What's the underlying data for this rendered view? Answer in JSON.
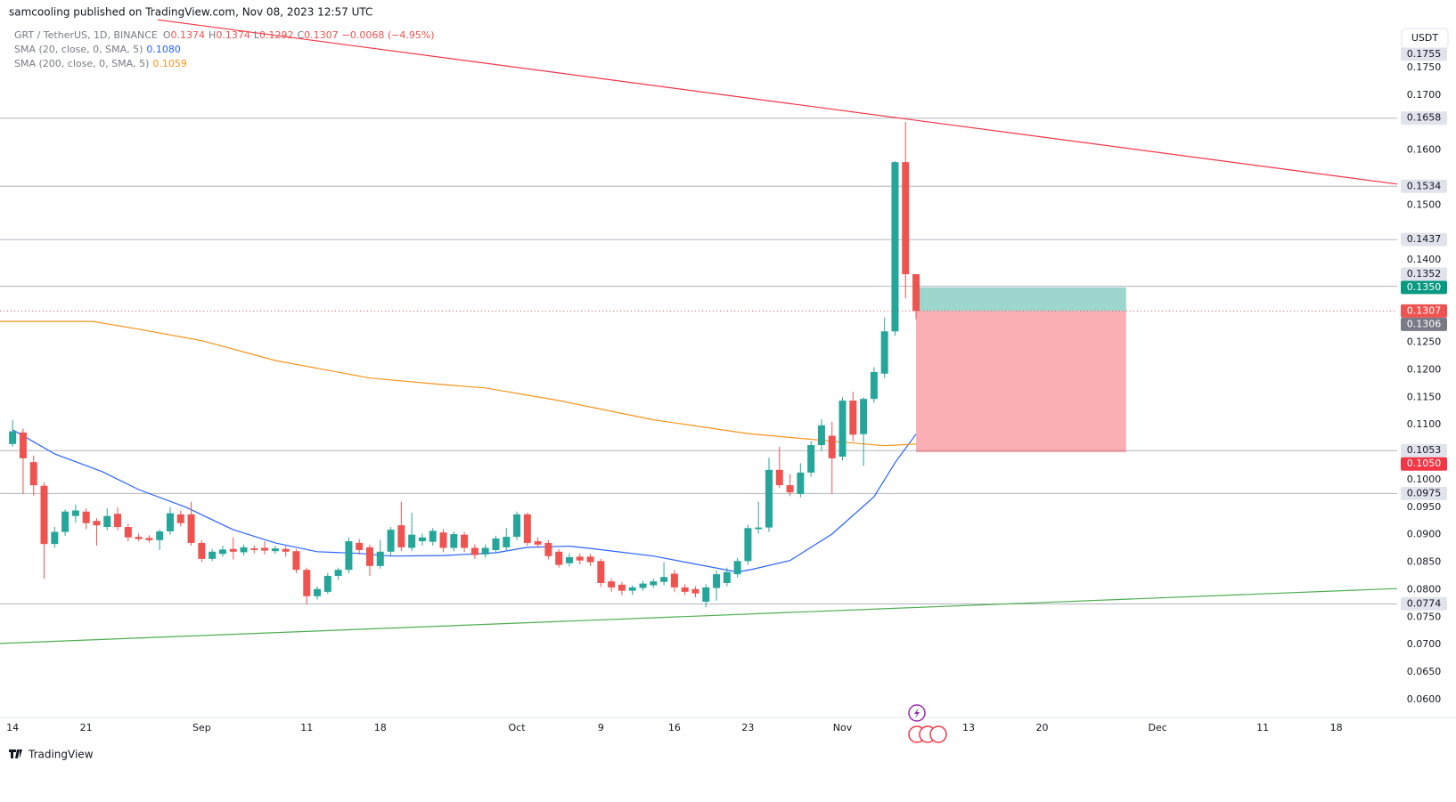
{
  "header": {
    "text": "samcooling published on TradingView.com, Nov 08, 2023 12:57 UTC"
  },
  "footer": {
    "brand": "TradingView"
  },
  "chart_data": {
    "type": "candlestick",
    "symbol": "GRT / TetherUS, 1D, BINANCE",
    "ohlc_legend": [
      {
        "k": "O",
        "v": "0.1374"
      },
      {
        "k": "H",
        "v": "0.1374"
      },
      {
        "k": "L",
        "v": "0.1292"
      },
      {
        "k": "C",
        "v": "0.1307"
      }
    ],
    "change": "−0.0068 (−4.95%)",
    "currency": "USDT",
    "up_color": "#26a69a",
    "down_color": "#ef5350",
    "xlim": [
      -1.2,
      131.8
    ],
    "xticks": [
      {
        "value": 0,
        "label": "14"
      },
      {
        "value": 7,
        "label": "21"
      },
      {
        "value": 18,
        "label": "Sep"
      },
      {
        "value": 28,
        "label": "11"
      },
      {
        "value": 35,
        "label": "18"
      },
      {
        "value": 48,
        "label": "Oct"
      },
      {
        "value": 56,
        "label": "9"
      },
      {
        "value": 63,
        "label": "16"
      },
      {
        "value": 70,
        "label": "23"
      },
      {
        "value": 79,
        "label": "Nov"
      },
      {
        "value": 91,
        "label": "13"
      },
      {
        "value": 98,
        "label": "20"
      },
      {
        "value": 109,
        "label": "Dec"
      },
      {
        "value": 119,
        "label": "11"
      },
      {
        "value": 126,
        "label": "18"
      }
    ],
    "ylim": [
      0.0569,
      0.1873
    ],
    "yticks": [
      {
        "value": 0.175,
        "label": "0.1750"
      },
      {
        "value": 0.17,
        "label": "0.1700"
      },
      {
        "value": 0.16,
        "label": "0.1600"
      },
      {
        "value": 0.15,
        "label": "0.1500"
      },
      {
        "value": 0.14,
        "label": "0.1400"
      },
      {
        "value": 0.125,
        "label": "0.1250"
      },
      {
        "value": 0.12,
        "label": "0.1200"
      },
      {
        "value": 0.115,
        "label": "0.1150"
      },
      {
        "value": 0.11,
        "label": "0.1100"
      },
      {
        "value": 0.1,
        "label": "0.1000"
      },
      {
        "value": 0.095,
        "label": "0.0950"
      },
      {
        "value": 0.09,
        "label": "0.0900"
      },
      {
        "value": 0.085,
        "label": "0.0850"
      },
      {
        "value": 0.08,
        "label": "0.0800"
      },
      {
        "value": 0.075,
        "label": "0.0750"
      },
      {
        "value": 0.07,
        "label": "0.0700"
      },
      {
        "value": 0.065,
        "label": "0.0650"
      },
      {
        "value": 0.06,
        "label": "0.0600"
      }
    ],
    "candles": [
      {
        "o": 0.1065,
        "h": 0.1109,
        "l": 0.106,
        "c": 0.1088
      },
      {
        "o": 0.1086,
        "h": 0.1093,
        "l": 0.0974,
        "c": 0.1039
      },
      {
        "o": 0.1032,
        "h": 0.1044,
        "l": 0.0971,
        "c": 0.099
      },
      {
        "o": 0.0989,
        "h": 0.0995,
        "l": 0.082,
        "c": 0.0883
      },
      {
        "o": 0.0883,
        "h": 0.0914,
        "l": 0.0876,
        "c": 0.0905
      },
      {
        "o": 0.0905,
        "h": 0.0946,
        "l": 0.0898,
        "c": 0.0942
      },
      {
        "o": 0.0934,
        "h": 0.0955,
        "l": 0.0922,
        "c": 0.0944
      },
      {
        "o": 0.0942,
        "h": 0.0948,
        "l": 0.091,
        "c": 0.0921
      },
      {
        "o": 0.0925,
        "h": 0.093,
        "l": 0.088,
        "c": 0.0917
      },
      {
        "o": 0.0914,
        "h": 0.0948,
        "l": 0.0908,
        "c": 0.0934
      },
      {
        "o": 0.0938,
        "h": 0.095,
        "l": 0.0908,
        "c": 0.0914
      },
      {
        "o": 0.0914,
        "h": 0.092,
        "l": 0.0888,
        "c": 0.0895
      },
      {
        "o": 0.0896,
        "h": 0.0902,
        "l": 0.0888,
        "c": 0.0892
      },
      {
        "o": 0.0894,
        "h": 0.0899,
        "l": 0.0886,
        "c": 0.089
      },
      {
        "o": 0.089,
        "h": 0.091,
        "l": 0.0872,
        "c": 0.0906
      },
      {
        "o": 0.0906,
        "h": 0.095,
        "l": 0.09,
        "c": 0.0939
      },
      {
        "o": 0.0937,
        "h": 0.0944,
        "l": 0.0915,
        "c": 0.0921
      },
      {
        "o": 0.0937,
        "h": 0.096,
        "l": 0.088,
        "c": 0.0885
      },
      {
        "o": 0.0885,
        "h": 0.089,
        "l": 0.085,
        "c": 0.0856
      },
      {
        "o": 0.0856,
        "h": 0.0874,
        "l": 0.0852,
        "c": 0.0869
      },
      {
        "o": 0.0865,
        "h": 0.088,
        "l": 0.086,
        "c": 0.0873
      },
      {
        "o": 0.0874,
        "h": 0.0895,
        "l": 0.0855,
        "c": 0.0869
      },
      {
        "o": 0.0868,
        "h": 0.0882,
        "l": 0.0862,
        "c": 0.0877
      },
      {
        "o": 0.0875,
        "h": 0.088,
        "l": 0.0866,
        "c": 0.0872
      },
      {
        "o": 0.0876,
        "h": 0.0888,
        "l": 0.0864,
        "c": 0.0871
      },
      {
        "o": 0.087,
        "h": 0.088,
        "l": 0.0865,
        "c": 0.0875
      },
      {
        "o": 0.0874,
        "h": 0.0879,
        "l": 0.086,
        "c": 0.0869
      },
      {
        "o": 0.087,
        "h": 0.0874,
        "l": 0.083,
        "c": 0.0836
      },
      {
        "o": 0.0836,
        "h": 0.084,
        "l": 0.0773,
        "c": 0.0788
      },
      {
        "o": 0.0788,
        "h": 0.0806,
        "l": 0.0782,
        "c": 0.0801
      },
      {
        "o": 0.0796,
        "h": 0.083,
        "l": 0.0792,
        "c": 0.0825
      },
      {
        "o": 0.0825,
        "h": 0.084,
        "l": 0.0818,
        "c": 0.0836
      },
      {
        "o": 0.0836,
        "h": 0.0895,
        "l": 0.083,
        "c": 0.0888
      },
      {
        "o": 0.0885,
        "h": 0.0892,
        "l": 0.0864,
        "c": 0.0872
      },
      {
        "o": 0.0877,
        "h": 0.0882,
        "l": 0.0825,
        "c": 0.0843
      },
      {
        "o": 0.0843,
        "h": 0.089,
        "l": 0.0838,
        "c": 0.0869
      },
      {
        "o": 0.0869,
        "h": 0.0914,
        "l": 0.0862,
        "c": 0.0909
      },
      {
        "o": 0.0917,
        "h": 0.096,
        "l": 0.087,
        "c": 0.0877
      },
      {
        "o": 0.0876,
        "h": 0.094,
        "l": 0.087,
        "c": 0.09
      },
      {
        "o": 0.0888,
        "h": 0.0902,
        "l": 0.088,
        "c": 0.0895
      },
      {
        "o": 0.0887,
        "h": 0.0912,
        "l": 0.088,
        "c": 0.0907
      },
      {
        "o": 0.0904,
        "h": 0.091,
        "l": 0.0868,
        "c": 0.0876
      },
      {
        "o": 0.0876,
        "h": 0.0906,
        "l": 0.087,
        "c": 0.0901
      },
      {
        "o": 0.09,
        "h": 0.0905,
        "l": 0.0868,
        "c": 0.0876
      },
      {
        "o": 0.0876,
        "h": 0.0882,
        "l": 0.0856,
        "c": 0.0863
      },
      {
        "o": 0.0864,
        "h": 0.0882,
        "l": 0.0858,
        "c": 0.0876
      },
      {
        "o": 0.0872,
        "h": 0.0898,
        "l": 0.0866,
        "c": 0.0893
      },
      {
        "o": 0.0877,
        "h": 0.0912,
        "l": 0.0872,
        "c": 0.0896
      },
      {
        "o": 0.0896,
        "h": 0.0942,
        "l": 0.089,
        "c": 0.0937
      },
      {
        "o": 0.0937,
        "h": 0.094,
        "l": 0.088,
        "c": 0.0885
      },
      {
        "o": 0.0888,
        "h": 0.0895,
        "l": 0.0876,
        "c": 0.0882
      },
      {
        "o": 0.0885,
        "h": 0.089,
        "l": 0.0855,
        "c": 0.0861
      },
      {
        "o": 0.0869,
        "h": 0.0874,
        "l": 0.084,
        "c": 0.0845
      },
      {
        "o": 0.0848,
        "h": 0.0866,
        "l": 0.0842,
        "c": 0.0859
      },
      {
        "o": 0.086,
        "h": 0.0866,
        "l": 0.0846,
        "c": 0.0853
      },
      {
        "o": 0.086,
        "h": 0.0865,
        "l": 0.0843,
        "c": 0.085
      },
      {
        "o": 0.0852,
        "h": 0.0856,
        "l": 0.0805,
        "c": 0.0812
      },
      {
        "o": 0.0815,
        "h": 0.082,
        "l": 0.0796,
        "c": 0.0804
      },
      {
        "o": 0.0809,
        "h": 0.0814,
        "l": 0.079,
        "c": 0.0798
      },
      {
        "o": 0.0798,
        "h": 0.0808,
        "l": 0.079,
        "c": 0.0804
      },
      {
        "o": 0.0803,
        "h": 0.0816,
        "l": 0.0798,
        "c": 0.0811
      },
      {
        "o": 0.0808,
        "h": 0.082,
        "l": 0.0803,
        "c": 0.0815
      },
      {
        "o": 0.0814,
        "h": 0.085,
        "l": 0.0808,
        "c": 0.0823
      },
      {
        "o": 0.0829,
        "h": 0.0836,
        "l": 0.0796,
        "c": 0.0804
      },
      {
        "o": 0.0804,
        "h": 0.081,
        "l": 0.079,
        "c": 0.0796
      },
      {
        "o": 0.0801,
        "h": 0.0806,
        "l": 0.0786,
        "c": 0.0793
      },
      {
        "o": 0.0778,
        "h": 0.081,
        "l": 0.0768,
        "c": 0.0804
      },
      {
        "o": 0.0803,
        "h": 0.0835,
        "l": 0.078,
        "c": 0.0828
      },
      {
        "o": 0.0812,
        "h": 0.084,
        "l": 0.0806,
        "c": 0.0832
      },
      {
        "o": 0.0828,
        "h": 0.0858,
        "l": 0.0822,
        "c": 0.0852
      },
      {
        "o": 0.0852,
        "h": 0.0918,
        "l": 0.0845,
        "c": 0.0912
      },
      {
        "o": 0.091,
        "h": 0.096,
        "l": 0.0902,
        "c": 0.0913
      },
      {
        "o": 0.0913,
        "h": 0.104,
        "l": 0.0905,
        "c": 0.1018
      },
      {
        "o": 0.1018,
        "h": 0.106,
        "l": 0.0985,
        "c": 0.099
      },
      {
        "o": 0.099,
        "h": 0.101,
        "l": 0.097,
        "c": 0.0977
      },
      {
        "o": 0.0974,
        "h": 0.103,
        "l": 0.0968,
        "c": 0.1013
      },
      {
        "o": 0.1013,
        "h": 0.107,
        "l": 0.1005,
        "c": 0.1063
      },
      {
        "o": 0.1063,
        "h": 0.111,
        "l": 0.1052,
        "c": 0.1099
      },
      {
        "o": 0.108,
        "h": 0.1105,
        "l": 0.0975,
        "c": 0.1039
      },
      {
        "o": 0.1042,
        "h": 0.115,
        "l": 0.1035,
        "c": 0.1144
      },
      {
        "o": 0.1144,
        "h": 0.116,
        "l": 0.107,
        "c": 0.1082
      },
      {
        "o": 0.1083,
        "h": 0.115,
        "l": 0.1025,
        "c": 0.1147
      },
      {
        "o": 0.1147,
        "h": 0.1205,
        "l": 0.114,
        "c": 0.1196
      },
      {
        "o": 0.1193,
        "h": 0.1295,
        "l": 0.1185,
        "c": 0.127
      },
      {
        "o": 0.127,
        "h": 0.158,
        "l": 0.1262,
        "c": 0.1578
      },
      {
        "o": 0.1578,
        "h": 0.1651,
        "l": 0.133,
        "c": 0.1374
      },
      {
        "o": 0.1374,
        "h": 0.1374,
        "l": 0.1292,
        "c": 0.1307
      }
    ],
    "sma": [
      {
        "name": "SMA (20, close, 0, SMA, 5)",
        "value_text": "0.1080",
        "color": "#2962ff",
        "x": [
          0,
          4,
          8.5,
          12,
          16.5,
          21,
          25,
          29,
          33,
          36,
          41,
          46,
          49,
          53,
          55,
          61,
          64,
          69,
          70.4,
          74,
          78,
          82,
          84,
          86
        ],
        "values": [
          0.1091,
          0.1047,
          0.1015,
          0.0982,
          0.095,
          0.0909,
          0.0885,
          0.0869,
          0.0866,
          0.0861,
          0.0862,
          0.0867,
          0.0877,
          0.0879,
          0.0875,
          0.0861,
          0.085,
          0.0832,
          0.0837,
          0.0853,
          0.0901,
          0.0969,
          0.1031,
          0.1083
        ]
      },
      {
        "name": "SMA (200, close, 0, SMA, 5)",
        "value_text": "0.1059",
        "color": "#f7931a",
        "x": [
          -1.2,
          7.6,
          12,
          18,
          25,
          34,
          41,
          45,
          52,
          61,
          70,
          78,
          83,
          86
        ],
        "values": [
          0.1288,
          0.1288,
          0.1274,
          0.1253,
          0.1217,
          0.1185,
          0.1173,
          0.1167,
          0.1144,
          0.1109,
          0.1084,
          0.107,
          0.1062,
          0.1065
        ]
      }
    ],
    "trendlines": [
      {
        "color": "#f23645",
        "x": [
          13.8,
          131.8
        ],
        "values": [
          0.1837,
          0.1538
        ]
      },
      {
        "color": "#4caf50",
        "x": [
          -1.2,
          131.8
        ],
        "values": [
          0.0702,
          0.0802
        ]
      }
    ],
    "levels": [
      0.1658,
      0.1534,
      0.1437,
      0.1352,
      0.1053,
      0.0975,
      0.0774
    ],
    "level_color": "#b2b5be",
    "position": {
      "x": [
        86,
        106
      ],
      "entry": 0.1307,
      "target": {
        "value": 0.135,
        "label": "0.1350"
      },
      "stop": {
        "value": 0.105,
        "label": "0.1050"
      },
      "profit_color": "#089981",
      "loss_color": "#f23645"
    },
    "last_price": 0.1307,
    "marker_price": 0.1306,
    "top_price": 0.1755
  }
}
